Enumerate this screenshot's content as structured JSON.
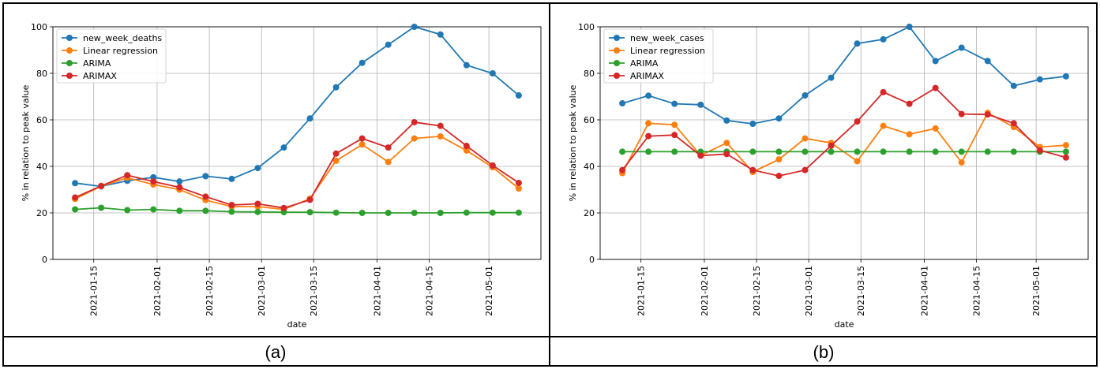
{
  "panel_labels": [
    "(a)",
    "(b)"
  ],
  "chart_data": [
    {
      "type": "line",
      "xlabel": "date",
      "ylabel": "% in relation to peak value",
      "ylim": [
        0,
        100
      ],
      "yticks": [
        0,
        20,
        40,
        60,
        80,
        100
      ],
      "xticks": [
        "2021-01-15",
        "2021-02-01",
        "2021-02-15",
        "2021-03-01",
        "2021-03-15",
        "2021-04-01",
        "2021-04-15",
        "2021-05-01"
      ],
      "x": [
        "2021-01-10",
        "2021-01-17",
        "2021-01-24",
        "2021-01-31",
        "2021-02-07",
        "2021-02-14",
        "2021-02-21",
        "2021-02-28",
        "2021-03-07",
        "2021-03-14",
        "2021-03-21",
        "2021-03-28",
        "2021-04-04",
        "2021-04-11",
        "2021-04-18",
        "2021-04-25",
        "2021-05-02",
        "2021-05-09"
      ],
      "grid": true,
      "legend_position": "top-left",
      "colors": [
        "#1f77b4",
        "#ff7f0e",
        "#2ca02c",
        "#d62728"
      ],
      "series": [
        {
          "name": "new_week_deaths",
          "values": [
            32.8,
            31.4,
            33.8,
            35.3,
            33.5,
            35.8,
            34.6,
            39.3,
            48.1,
            60.6,
            74.0,
            84.5,
            92.3,
            100.0,
            96.7,
            83.5,
            80.0,
            70.5
          ]
        },
        {
          "name": "Linear regression",
          "values": [
            26.0,
            31.5,
            35.1,
            32.2,
            30.0,
            25.5,
            22.7,
            22.7,
            21.5,
            26.1,
            42.4,
            49.4,
            41.9,
            52.0,
            52.9,
            46.8,
            39.6,
            30.5
          ]
        },
        {
          "name": "ARIMA",
          "values": [
            21.5,
            22.2,
            21.2,
            21.5,
            20.9,
            20.9,
            20.5,
            20.4,
            20.3,
            20.3,
            20.1,
            20.0,
            20.0,
            20.0,
            20.0,
            20.1,
            20.1,
            20.1
          ]
        },
        {
          "name": "ARIMAX",
          "values": [
            26.6,
            31.6,
            36.2,
            33.5,
            31.0,
            27.0,
            23.4,
            23.9,
            22.1,
            25.6,
            45.5,
            52.0,
            48.1,
            59.0,
            57.4,
            48.8,
            40.4,
            32.9
          ]
        }
      ]
    },
    {
      "type": "line",
      "xlabel": "date",
      "ylabel": "% in relation to peak value",
      "ylim": [
        0,
        100
      ],
      "yticks": [
        0,
        20,
        40,
        60,
        80,
        100
      ],
      "xticks": [
        "2021-01-15",
        "2021-02-01",
        "2021-02-15",
        "2021-03-01",
        "2021-03-15",
        "2021-04-01",
        "2021-04-15",
        "2021-05-01"
      ],
      "x": [
        "2021-01-10",
        "2021-01-17",
        "2021-01-24",
        "2021-01-31",
        "2021-02-07",
        "2021-02-14",
        "2021-02-21",
        "2021-02-28",
        "2021-03-07",
        "2021-03-14",
        "2021-03-21",
        "2021-03-28",
        "2021-04-04",
        "2021-04-11",
        "2021-04-18",
        "2021-04-25",
        "2021-05-02",
        "2021-05-09"
      ],
      "grid": true,
      "legend_position": "top-left",
      "colors": [
        "#1f77b4",
        "#ff7f0e",
        "#2ca02c",
        "#d62728"
      ],
      "series": [
        {
          "name": "new_week_cases",
          "values": [
            67.1,
            70.4,
            66.9,
            66.5,
            59.7,
            58.3,
            60.6,
            70.5,
            78.1,
            92.8,
            94.6,
            100.0,
            85.3,
            91.0,
            85.3,
            74.6,
            77.4,
            78.7
          ]
        },
        {
          "name": "Linear regression",
          "values": [
            37.1,
            58.5,
            57.9,
            44.7,
            50.1,
            37.6,
            43.0,
            52.0,
            50.1,
            42.2,
            57.4,
            53.8,
            56.3,
            41.7,
            63.0,
            56.9,
            48.3,
            49.1
          ]
        },
        {
          "name": "ARIMA",
          "values": [
            46.3,
            46.3,
            46.3,
            46.3,
            46.3,
            46.3,
            46.3,
            46.3,
            46.3,
            46.3,
            46.3,
            46.3,
            46.3,
            46.3,
            46.3,
            46.3,
            46.3,
            46.3
          ]
        },
        {
          "name": "ARIMAX",
          "values": [
            38.4,
            53.0,
            53.5,
            44.6,
            45.3,
            38.4,
            35.9,
            38.4,
            48.9,
            59.3,
            71.9,
            66.9,
            73.7,
            62.5,
            62.3,
            58.5,
            46.9,
            43.8
          ]
        }
      ]
    }
  ]
}
